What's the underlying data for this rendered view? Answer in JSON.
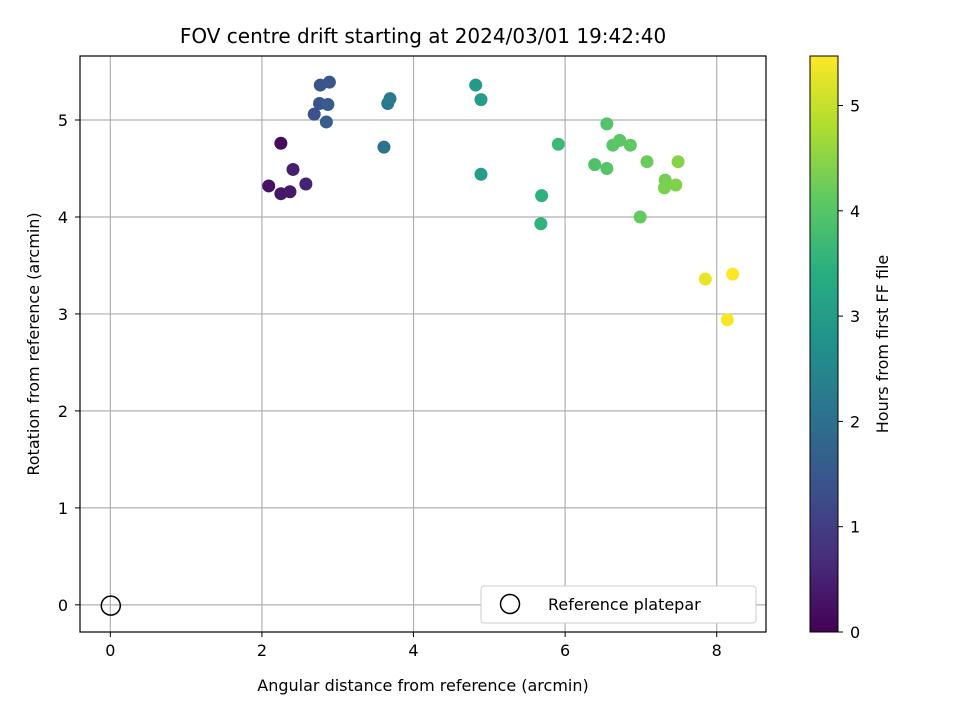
{
  "chart_data": {
    "type": "scatter",
    "title": "FOV centre drift starting at 2024/03/01 19:42:40",
    "xlabel": "Angular distance from reference (arcmin)",
    "ylabel": "Rotation from reference (arcmin)",
    "xlim": [
      -0.4,
      8.65
    ],
    "ylim": [
      -0.28,
      5.66
    ],
    "xticks": [
      0,
      2,
      4,
      6,
      8
    ],
    "yticks": [
      0,
      1,
      2,
      3,
      4,
      5
    ],
    "grid": true,
    "colormap": "viridis",
    "colorbar": {
      "label": "Hours from first FF file",
      "range": [
        0,
        5.47
      ],
      "ticks": [
        0,
        1,
        2,
        3,
        4,
        5
      ]
    },
    "legend": {
      "position": "lower-right",
      "entries": [
        {
          "label": "Reference platepar",
          "marker": "open-circle",
          "color": "#000000"
        }
      ]
    },
    "reference_point": {
      "x": 0,
      "y": 0
    },
    "points": [
      {
        "x": 2.25,
        "y": 4.76,
        "h": 0.18
      },
      {
        "x": 2.09,
        "y": 4.32,
        "h": 0.25
      },
      {
        "x": 2.25,
        "y": 4.24,
        "h": 0.32
      },
      {
        "x": 2.37,
        "y": 4.26,
        "h": 0.39
      },
      {
        "x": 2.41,
        "y": 4.49,
        "h": 0.46
      },
      {
        "x": 2.58,
        "y": 4.34,
        "h": 0.53
      },
      {
        "x": 2.69,
        "y": 5.06,
        "h": 1.35
      },
      {
        "x": 2.76,
        "y": 5.17,
        "h": 1.4
      },
      {
        "x": 2.77,
        "y": 5.36,
        "h": 1.45
      },
      {
        "x": 2.89,
        "y": 5.39,
        "h": 1.5
      },
      {
        "x": 2.87,
        "y": 5.16,
        "h": 1.55
      },
      {
        "x": 2.85,
        "y": 4.98,
        "h": 1.6
      },
      {
        "x": 3.61,
        "y": 4.72,
        "h": 2.1
      },
      {
        "x": 3.66,
        "y": 5.17,
        "h": 2.2
      },
      {
        "x": 3.69,
        "y": 5.22,
        "h": 2.25
      },
      {
        "x": 4.82,
        "y": 5.36,
        "h": 2.95
      },
      {
        "x": 4.89,
        "y": 5.21,
        "h": 3.0
      },
      {
        "x": 4.89,
        "y": 4.44,
        "h": 3.05
      },
      {
        "x": 5.69,
        "y": 4.22,
        "h": 3.5
      },
      {
        "x": 5.68,
        "y": 3.93,
        "h": 3.55
      },
      {
        "x": 5.91,
        "y": 4.75,
        "h": 3.7
      },
      {
        "x": 6.39,
        "y": 4.54,
        "h": 3.9
      },
      {
        "x": 6.55,
        "y": 4.96,
        "h": 3.95
      },
      {
        "x": 6.55,
        "y": 4.5,
        "h": 3.98
      },
      {
        "x": 6.63,
        "y": 4.74,
        "h": 4.02
      },
      {
        "x": 6.72,
        "y": 4.79,
        "h": 4.06
      },
      {
        "x": 6.86,
        "y": 4.74,
        "h": 4.1
      },
      {
        "x": 6.99,
        "y": 4.0,
        "h": 4.15
      },
      {
        "x": 7.08,
        "y": 4.57,
        "h": 4.22
      },
      {
        "x": 7.32,
        "y": 4.38,
        "h": 4.3
      },
      {
        "x": 7.31,
        "y": 4.3,
        "h": 4.35
      },
      {
        "x": 7.46,
        "y": 4.33,
        "h": 4.4
      },
      {
        "x": 7.49,
        "y": 4.57,
        "h": 4.45
      },
      {
        "x": 7.85,
        "y": 3.36,
        "h": 5.3
      },
      {
        "x": 8.14,
        "y": 2.94,
        "h": 5.4
      },
      {
        "x": 8.21,
        "y": 3.41,
        "h": 5.47
      }
    ]
  }
}
